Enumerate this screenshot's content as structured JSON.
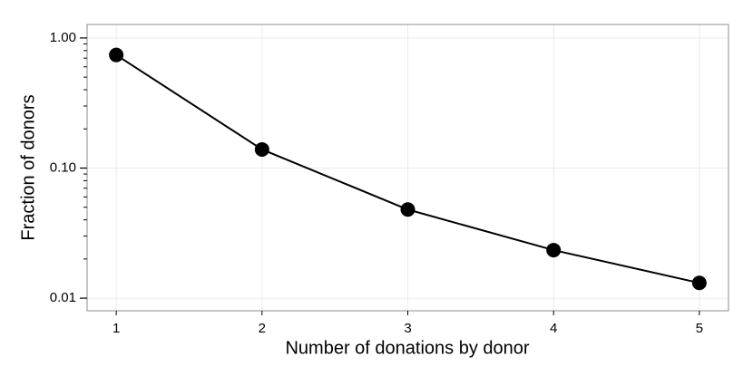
{
  "chart_data": {
    "type": "line",
    "x_label": "Number of donations by donor",
    "y_label": "Fraction of donors",
    "x": [
      1,
      2,
      3,
      4,
      5
    ],
    "series": [
      {
        "color": "#000000",
        "values": [
          0.74,
          0.139,
          0.048,
          0.0234,
          0.0131
        ]
      }
    ],
    "xlim": [
      0.8,
      5.2
    ],
    "xticks": [
      1,
      2,
      3,
      4,
      5
    ],
    "ylim": [
      0.008,
      1.27
    ],
    "log_y": true,
    "yticks": [
      {
        "value": 1,
        "label": "1.00"
      },
      {
        "value": 0.1,
        "label": "0.10"
      },
      0.01
    ],
    "yminorticks": [
      0.02,
      0.03,
      0.04,
      0.05,
      0.06,
      0.07,
      0.08,
      0.09,
      0.2,
      0.3,
      0.4,
      0.5,
      0.6,
      0.7,
      0.8,
      0.9
    ],
    "grid": true
  }
}
